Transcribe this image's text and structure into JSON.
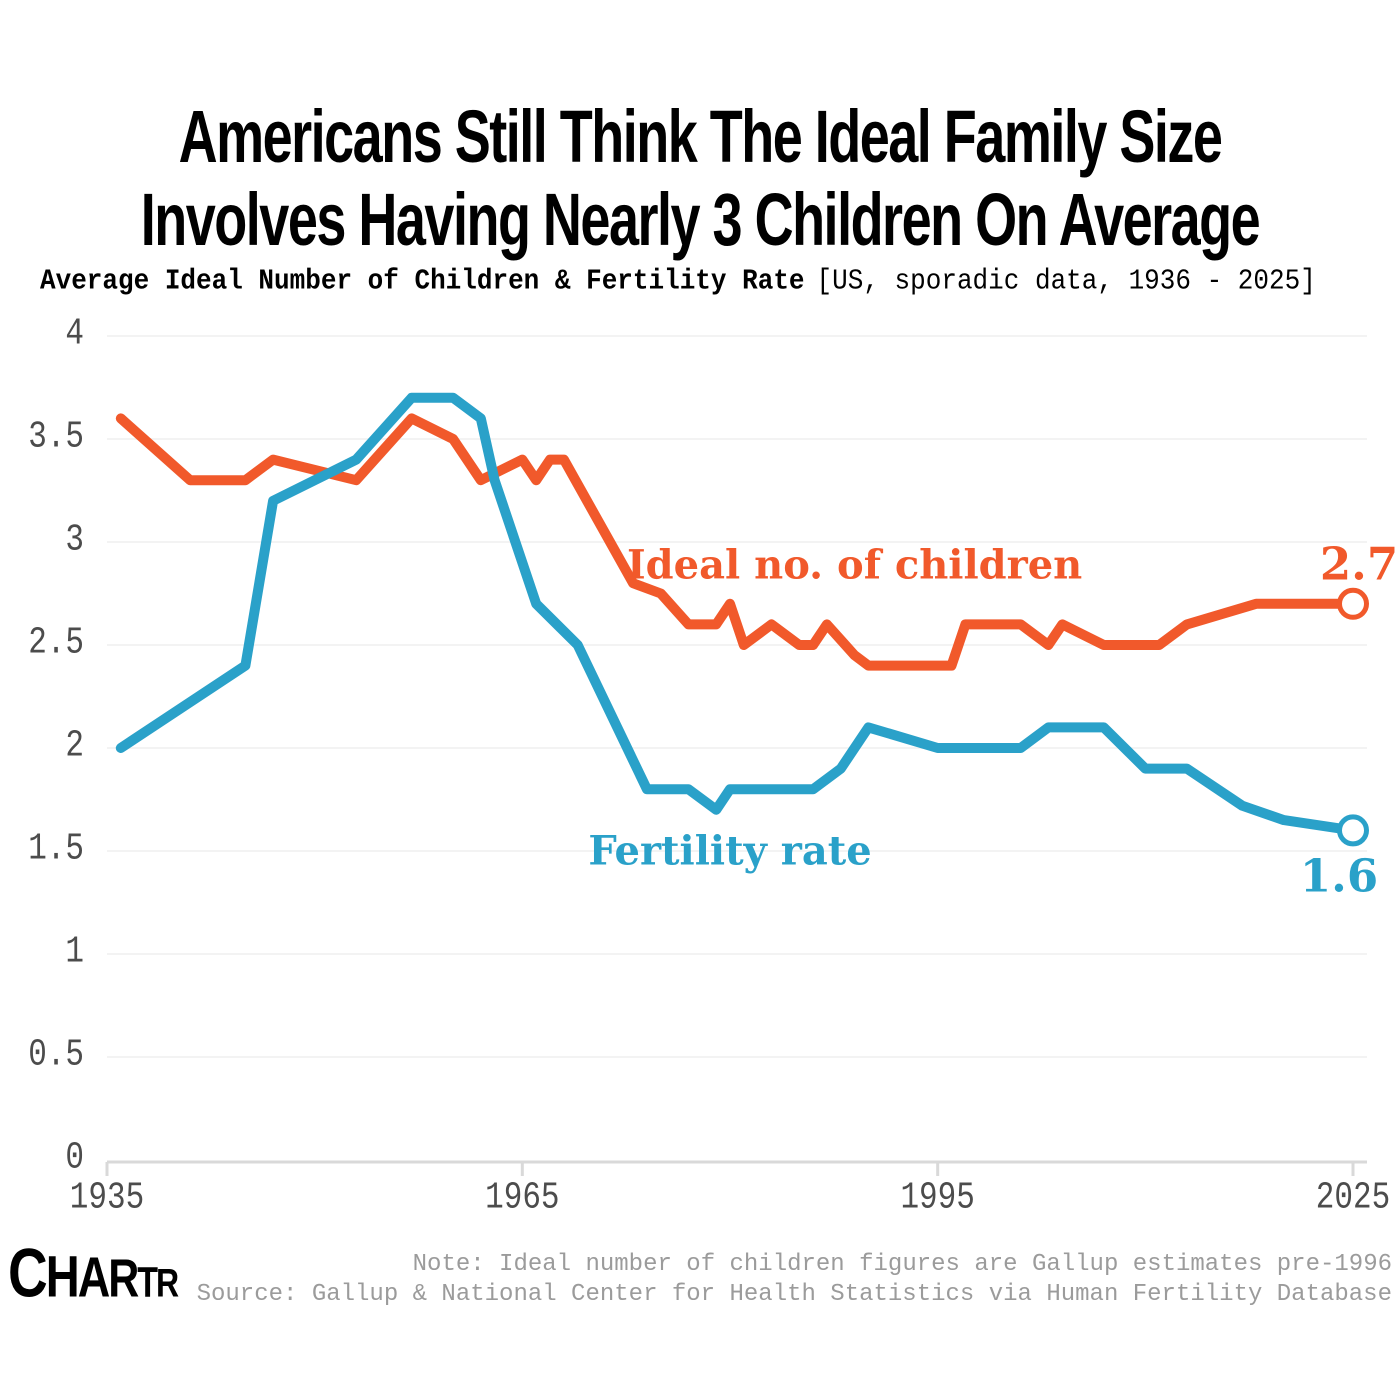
{
  "header": {
    "title_lines": [
      "Americans Still Think The Ideal Family Size",
      "Involves Having Nearly 3 Children On Average"
    ],
    "subtitle_bold": "Average Ideal Number of Children & Fertility Rate",
    "subtitle_note": "[US, sporadic data, 1936 - 2025]"
  },
  "chart_data": {
    "type": "line",
    "title": "Average Ideal Number of Children & Fertility Rate",
    "subtitle_note": "US, sporadic data, 1936 - 2025",
    "grid": "horizontal-light",
    "legend": "inline-labels",
    "x_axis": {
      "range": [
        1935,
        2025
      ],
      "ticks": [
        1935,
        1965,
        1995,
        2025
      ],
      "tick_labels": [
        "1935",
        "1965",
        "1995",
        "2025"
      ]
    },
    "y_axis": {
      "range": [
        0,
        4
      ],
      "ticks": [
        0,
        0.5,
        1,
        1.5,
        2,
        2.5,
        3,
        3.5,
        4
      ],
      "tick_labels": [
        "0",
        "0.5",
        "1",
        "1.5",
        "2",
        "2.5",
        "3",
        "3.5",
        "4"
      ]
    },
    "series": [
      {
        "name": "Ideal no. of children",
        "color": "#F1592B",
        "end_value_label": "2.7",
        "points": [
          [
            1936,
            3.6
          ],
          [
            1941,
            3.3
          ],
          [
            1945,
            3.3
          ],
          [
            1947,
            3.4
          ],
          [
            1953,
            3.3
          ],
          [
            1957,
            3.6
          ],
          [
            1960,
            3.5
          ],
          [
            1962,
            3.3
          ],
          [
            1965,
            3.4
          ],
          [
            1966,
            3.3
          ],
          [
            1967,
            3.4
          ],
          [
            1968,
            3.4
          ],
          [
            1973,
            2.8
          ],
          [
            1975,
            2.75
          ],
          [
            1977,
            2.6
          ],
          [
            1979,
            2.6
          ],
          [
            1980,
            2.7
          ],
          [
            1981,
            2.5
          ],
          [
            1983,
            2.6
          ],
          [
            1985,
            2.5
          ],
          [
            1986,
            2.5
          ],
          [
            1987,
            2.6
          ],
          [
            1989,
            2.45
          ],
          [
            1990,
            2.4
          ],
          [
            1996,
            2.4
          ],
          [
            1997,
            2.6
          ],
          [
            2001,
            2.6
          ],
          [
            2003,
            2.5
          ],
          [
            2004,
            2.6
          ],
          [
            2007,
            2.5
          ],
          [
            2011,
            2.5
          ],
          [
            2013,
            2.6
          ],
          [
            2018,
            2.7
          ],
          [
            2025,
            2.7
          ]
        ]
      },
      {
        "name": "Fertility rate",
        "color": "#2AA1C9",
        "end_value_label": "1.6",
        "points": [
          [
            1936,
            2.0
          ],
          [
            1945,
            2.4
          ],
          [
            1947,
            3.2
          ],
          [
            1953,
            3.4
          ],
          [
            1957,
            3.7
          ],
          [
            1960,
            3.7
          ],
          [
            1962,
            3.6
          ],
          [
            1963,
            3.3
          ],
          [
            1966,
            2.7
          ],
          [
            1969,
            2.5
          ],
          [
            1974,
            1.8
          ],
          [
            1977,
            1.8
          ],
          [
            1979,
            1.7
          ],
          [
            1980,
            1.8
          ],
          [
            1986,
            1.8
          ],
          [
            1988,
            1.9
          ],
          [
            1990,
            2.1
          ],
          [
            1995,
            2.0
          ],
          [
            2001,
            2.0
          ],
          [
            2003,
            2.1
          ],
          [
            2007,
            2.1
          ],
          [
            2010,
            1.9
          ],
          [
            2013,
            1.9
          ],
          [
            2017,
            1.72
          ],
          [
            2020,
            1.65
          ],
          [
            2025,
            1.6
          ]
        ]
      }
    ],
    "annotations": [
      {
        "text": "Ideal no. of children",
        "x": 1989,
        "y": 2.89,
        "series": 0
      },
      {
        "text": "Fertility rate",
        "x": 1980,
        "y": 1.5,
        "series": 1
      }
    ]
  },
  "footer": {
    "note": "Note: Ideal number of children figures are Gallup estimates pre-1996",
    "source": "Source: Gallup & National Center for Health Statistics via Human Fertility Database",
    "logo": "CHARTR"
  }
}
